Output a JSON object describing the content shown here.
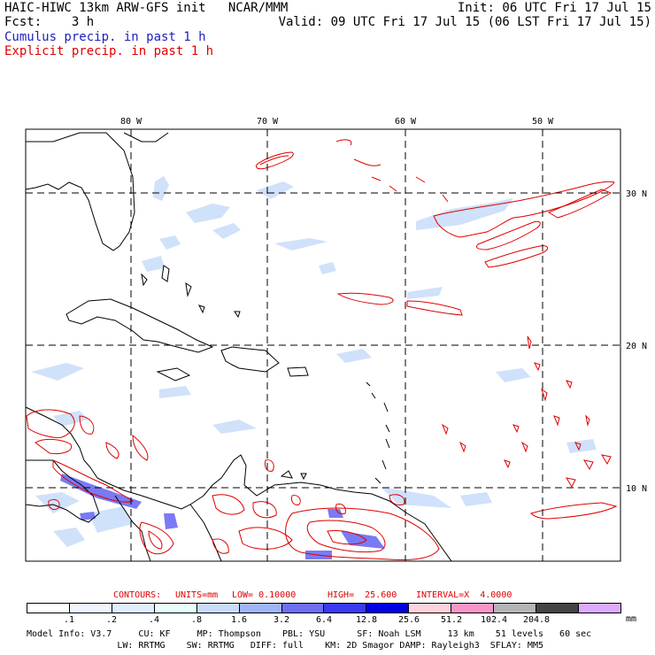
{
  "header": {
    "model_title": "HAIC-HIWC 13km ARW-GFS init   NCAR/MMM",
    "fcst": "Fcst:    3 h",
    "init": "Init: 06 UTC Fri 17 Jul 15",
    "valid": "Valid: 09 UTC Fri 17 Jul 15 (06 LST Fri 17 Jul 15)",
    "cumulus_label": "Cumulus precip. in past 1 h",
    "explicit_label": "Explicit precip. in past 1 h",
    "cumulus_color": "#2020c0",
    "explicit_color": "#e00000"
  },
  "map": {
    "lon_labels": [
      "80 W",
      "70 W",
      "60 W",
      "50 W"
    ],
    "lat_labels": [
      "30 N",
      "20 N",
      "10 N"
    ],
    "outline_color": "#000000"
  },
  "contours": {
    "label": "CONTOURS:",
    "units": "UNITS=mm",
    "low": "LOW= 0.10000",
    "high": "HIGH=  25.600",
    "interval": "INTERVAL=X  4.0000",
    "color": "#e00000"
  },
  "colorbar": {
    "unit": "mm",
    "ticks": [
      ".1",
      ".2",
      ".4",
      ".8",
      "1.6",
      "3.2",
      "6.4",
      "12.8",
      "25.6",
      "51.2",
      "102.4",
      "204.8"
    ],
    "colors": [
      "#ffffff",
      "#f0f6ff",
      "#e0efff",
      "#e6fffd",
      "#c8dcfa",
      "#a0b4f8",
      "#6e6ef6",
      "#3a3af0",
      "#0000e6",
      "#ffd2dc",
      "#f896c8",
      "#b4b4b4",
      "#444444",
      "#dcaaff"
    ]
  },
  "footer": {
    "line1": "Model Info: V3.7     CU: KF     MP: Thompson    PBL: YSU      SF: Noah LSM     13 km    51 levels   60 sec",
    "line2": "                 LW: RRTMG    SW: RRTMG   DIFF: full    KM: 2D Smagor DAMP: Rayleigh3  SFLAY: MM5"
  }
}
